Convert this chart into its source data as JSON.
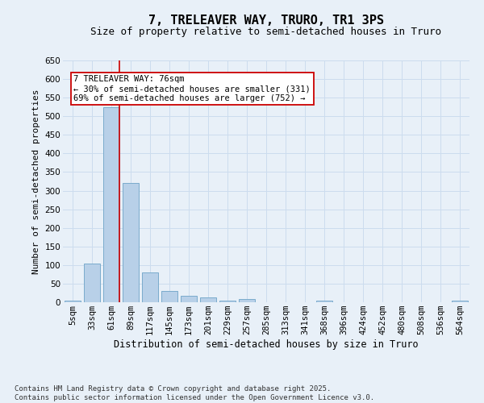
{
  "title": "7, TRELEAVER WAY, TRURO, TR1 3PS",
  "subtitle": "Size of property relative to semi-detached houses in Truro",
  "xlabel": "Distribution of semi-detached houses by size in Truro",
  "ylabel": "Number of semi-detached properties",
  "categories": [
    "5sqm",
    "33sqm",
    "61sqm",
    "89sqm",
    "117sqm",
    "145sqm",
    "173sqm",
    "201sqm",
    "229sqm",
    "257sqm",
    "285sqm",
    "313sqm",
    "341sqm",
    "368sqm",
    "396sqm",
    "424sqm",
    "452sqm",
    "480sqm",
    "508sqm",
    "536sqm",
    "564sqm"
  ],
  "values": [
    5,
    105,
    525,
    320,
    80,
    30,
    18,
    14,
    5,
    8,
    0,
    0,
    0,
    5,
    0,
    0,
    0,
    0,
    0,
    0,
    5
  ],
  "bar_color": "#b8d0e8",
  "bar_edgecolor": "#7aabcc",
  "bar_linewidth": 0.7,
  "grid_color": "#ccdcee",
  "background_color": "#e8f0f8",
  "red_line_index": 2,
  "red_line_color": "#cc0000",
  "annotation_text": "7 TRELEAVER WAY: 76sqm\n← 30% of semi-detached houses are smaller (331)\n69% of semi-detached houses are larger (752) →",
  "annotation_fontsize": 7.5,
  "annotation_box_facecolor": "#ffffff",
  "annotation_box_edgecolor": "#cc0000",
  "ylim": [
    0,
    650
  ],
  "yticks": [
    0,
    50,
    100,
    150,
    200,
    250,
    300,
    350,
    400,
    450,
    500,
    550,
    600,
    650
  ],
  "footer_text": "Contains HM Land Registry data © Crown copyright and database right 2025.\nContains public sector information licensed under the Open Government Licence v3.0.",
  "title_fontsize": 11,
  "subtitle_fontsize": 9,
  "xlabel_fontsize": 8.5,
  "ylabel_fontsize": 8,
  "tick_fontsize": 7.5,
  "footer_fontsize": 6.5
}
